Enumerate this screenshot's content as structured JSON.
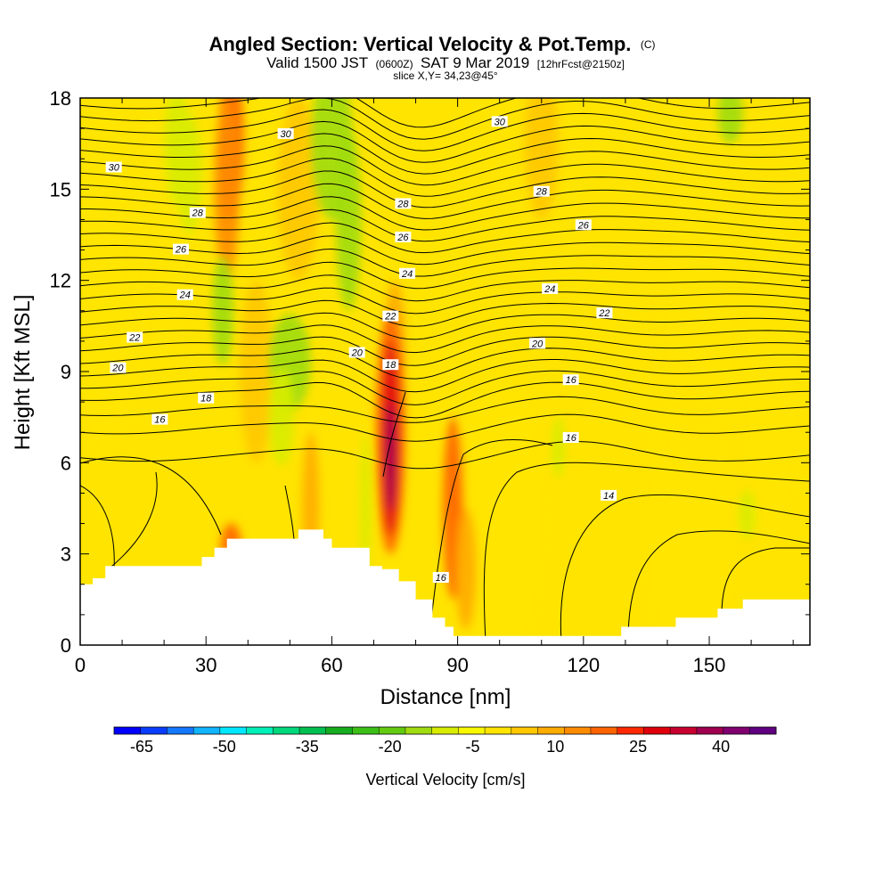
{
  "title": {
    "main": "Angled Section: Vertical Velocity & Pot.Temp.",
    "main_unit": "(C)",
    "valid_prefix": "Valid 1500 JST",
    "valid_utc": "(0600Z)",
    "valid_date": "SAT 9 Mar 2019",
    "forecast": "[12hrFcst@2150z]",
    "slice": "slice X,Y= 34,23@45°"
  },
  "chart_data": {
    "type": "heatmap",
    "title": "Angled Section: Vertical Velocity & Pot.Temp. (C)",
    "xlabel": "Distance [nm]",
    "ylabel": "Height [Kft MSL]",
    "xlim": [
      0,
      174
    ],
    "ylim": [
      0,
      18
    ],
    "x_ticks": [
      0,
      30,
      60,
      90,
      120,
      150
    ],
    "y_ticks": [
      0,
      3,
      6,
      9,
      12,
      15,
      18
    ],
    "fill_variable": "Vertical Velocity [cm/s]",
    "colorbar": {
      "title": "Vertical Velocity [cm/s]",
      "tick_labels": [
        -65,
        -50,
        -35,
        -20,
        -5,
        10,
        25,
        40
      ],
      "bins": [
        -70,
        -65,
        -60,
        -55,
        -50,
        -45,
        -40,
        -35,
        -30,
        -25,
        -20,
        -15,
        -10,
        -5,
        0,
        5,
        10,
        15,
        20,
        25,
        30,
        35,
        40,
        45,
        50
      ],
      "colors": [
        "#0000ff",
        "#0a3cff",
        "#1478ff",
        "#10b4ff",
        "#00e8ff",
        "#00f0b8",
        "#00d87c",
        "#00c050",
        "#16ae20",
        "#3cc018",
        "#64cc10",
        "#a0dc10",
        "#d8ec00",
        "#f8f800",
        "#ffe400",
        "#ffc800",
        "#ffac00",
        "#ff8c00",
        "#ff6400",
        "#ff2800",
        "#e0000c",
        "#c80030",
        "#a00050",
        "#800070",
        "#600080"
      ]
    },
    "contour_variable": "Potential Temperature (C)",
    "contour_labels": [
      {
        "value": 30,
        "x": 8,
        "y": 15.7
      },
      {
        "value": 30,
        "x": 49,
        "y": 16.8
      },
      {
        "value": 30,
        "x": 100,
        "y": 17.2
      },
      {
        "value": 28,
        "x": 28,
        "y": 14.2
      },
      {
        "value": 28,
        "x": 77,
        "y": 14.5
      },
      {
        "value": 28,
        "x": 110,
        "y": 14.9
      },
      {
        "value": 26,
        "x": 24,
        "y": 13.0
      },
      {
        "value": 26,
        "x": 77,
        "y": 13.4
      },
      {
        "value": 26,
        "x": 120,
        "y": 13.8
      },
      {
        "value": 24,
        "x": 25,
        "y": 11.5
      },
      {
        "value": 24,
        "x": 78,
        "y": 12.2
      },
      {
        "value": 24,
        "x": 112,
        "y": 11.7
      },
      {
        "value": 22,
        "x": 13,
        "y": 10.1
      },
      {
        "value": 22,
        "x": 74,
        "y": 10.8
      },
      {
        "value": 22,
        "x": 125,
        "y": 10.9
      },
      {
        "value": 20,
        "x": 9,
        "y": 9.1
      },
      {
        "value": 20,
        "x": 66,
        "y": 9.6
      },
      {
        "value": 20,
        "x": 109,
        "y": 9.9
      },
      {
        "value": 18,
        "x": 30,
        "y": 8.1
      },
      {
        "value": 18,
        "x": 74,
        "y": 9.2
      },
      {
        "value": 16,
        "x": 19,
        "y": 7.4
      },
      {
        "value": 16,
        "x": 117,
        "y": 8.7
      },
      {
        "value": 16,
        "x": 117,
        "y": 6.8
      },
      {
        "value": 16,
        "x": 86,
        "y": 2.2
      },
      {
        "value": 14,
        "x": 126,
        "y": 4.9
      }
    ],
    "terrain_profile": [
      [
        0,
        2.0
      ],
      [
        3,
        2.2
      ],
      [
        6,
        2.6
      ],
      [
        29,
        2.9
      ],
      [
        32,
        3.2
      ],
      [
        35,
        3.5
      ],
      [
        52,
        3.8
      ],
      [
        58,
        3.5
      ],
      [
        60,
        3.2
      ],
      [
        69,
        2.6
      ],
      [
        72,
        2.5
      ],
      [
        76,
        2.1
      ],
      [
        80,
        1.5
      ],
      [
        84,
        0.9
      ],
      [
        87,
        0.6
      ],
      [
        89,
        0.3
      ],
      [
        129,
        0.6
      ],
      [
        142,
        0.9
      ],
      [
        152,
        1.2
      ],
      [
        158,
        1.5
      ],
      [
        174,
        1.6
      ]
    ]
  }
}
